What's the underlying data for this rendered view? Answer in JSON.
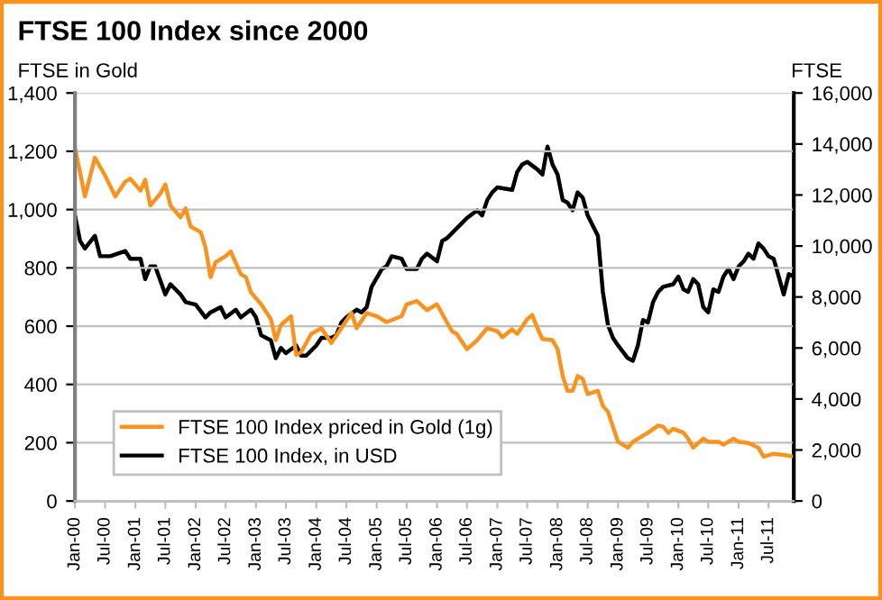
{
  "chart_data": {
    "type": "line",
    "title": "FTSE 100 Index since 2000",
    "ylabel": "FTSE in Gold",
    "y2label": "FTSE",
    "xlim": [
      "2000-01",
      "2011-12"
    ],
    "xticks": [
      {
        "value": "2000-01",
        "label": "Jan-00"
      },
      {
        "value": "2000-07",
        "label": "Jul-00"
      },
      {
        "value": "2001-01",
        "label": "Jan-01"
      },
      {
        "value": "2001-07",
        "label": "Jul-01"
      },
      {
        "value": "2002-01",
        "label": "Jan-02"
      },
      {
        "value": "2002-07",
        "label": "Jul-02"
      },
      {
        "value": "2003-01",
        "label": "Jan-03"
      },
      {
        "value": "2003-07",
        "label": "Jul-03"
      },
      {
        "value": "2004-01",
        "label": "Jan-04"
      },
      {
        "value": "2004-07",
        "label": "Jul-04"
      },
      {
        "value": "2005-01",
        "label": "Jan-05"
      },
      {
        "value": "2005-07",
        "label": "Jul-05"
      },
      {
        "value": "2006-01",
        "label": "Jan-06"
      },
      {
        "value": "2006-07",
        "label": "Jul-06"
      },
      {
        "value": "2007-01",
        "label": "Jan-07"
      },
      {
        "value": "2007-07",
        "label": "Jul-07"
      },
      {
        "value": "2008-01",
        "label": "Jan-08"
      },
      {
        "value": "2008-07",
        "label": "Jul-08"
      },
      {
        "value": "2009-01",
        "label": "Jan-09"
      },
      {
        "value": "2009-07",
        "label": "Jul-09"
      },
      {
        "value": "2010-01",
        "label": "Jan-10"
      },
      {
        "value": "2010-07",
        "label": "Jul-10"
      },
      {
        "value": "2011-01",
        "label": "Jan-11"
      },
      {
        "value": "2011-07",
        "label": "Jul-11"
      }
    ],
    "ylim": [
      0,
      1400
    ],
    "yticks": [
      0,
      200,
      400,
      600,
      800,
      {
        "value": 1000,
        "label": "1,000"
      },
      {
        "value": 1200,
        "label": "1,200"
      },
      {
        "value": 1400,
        "label": "1,400"
      }
    ],
    "y2lim": [
      0,
      16000
    ],
    "y2ticks": [
      0,
      {
        "value": 2000,
        "label": "2,000"
      },
      {
        "value": 4000,
        "label": "4,000"
      },
      {
        "value": 6000,
        "label": "6,000"
      },
      {
        "value": 8000,
        "label": "8,000"
      },
      {
        "value": 10000,
        "label": "10,000"
      },
      {
        "value": 12000,
        "label": "12,000"
      },
      {
        "value": 14000,
        "label": "14,000"
      },
      {
        "value": 16000,
        "label": "16,000"
      }
    ],
    "grid": "y",
    "legend": "bottom left",
    "marker": "none",
    "line_style": "solid",
    "series": [
      {
        "name": "FTSE 100 Index priced in Gold (1g)",
        "color": "#f7931e",
        "x": [
          "2000-01",
          "2000-02",
          "2000-03",
          "2000-05",
          "2000-07",
          "2000-09",
          "2000-11",
          "2000-12",
          "2001-02",
          "2001-03",
          "2001-04",
          "2001-06",
          "2001-07",
          "2001-08",
          "2001-10",
          "2001-11",
          "2001-12",
          "2002-02",
          "2002-03",
          "2002-04",
          "2002-05",
          "2002-07",
          "2002-08",
          "2002-10",
          "2002-11",
          "2002-12",
          "2003-02",
          "2003-04",
          "2003-05",
          "2003-06",
          "2003-08",
          "2003-09",
          "2003-10",
          "2003-12",
          "2004-02",
          "2004-04",
          "2004-06",
          "2004-08",
          "2004-09",
          "2004-11",
          "2005-01",
          "2005-03",
          "2005-06",
          "2005-07",
          "2005-09",
          "2005-11",
          "2006-01",
          "2006-03",
          "2006-04",
          "2006-05",
          "2006-07",
          "2006-09",
          "2006-11",
          "2007-01",
          "2007-02",
          "2007-04",
          "2007-05",
          "2007-07",
          "2007-08",
          "2007-09",
          "2007-10",
          "2007-12",
          "2008-01",
          "2008-02",
          "2008-03",
          "2008-04",
          "2008-05",
          "2008-06",
          "2008-07",
          "2008-09",
          "2008-10",
          "2008-11",
          "2008-12",
          "2009-01",
          "2009-03",
          "2009-04",
          "2009-06",
          "2009-07",
          "2009-09",
          "2009-10",
          "2009-11",
          "2009-12",
          "2010-02",
          "2010-03",
          "2010-04",
          "2010-06",
          "2010-07",
          "2010-09",
          "2010-10",
          "2010-12",
          "2011-01",
          "2011-03",
          "2011-05",
          "2011-06",
          "2011-08",
          "2011-10",
          "2011-12"
        ],
        "values": [
          1209,
          1127,
          1045,
          1178,
          1117,
          1045,
          1096,
          1106,
          1065,
          1102,
          1014,
          1055,
          1086,
          1014,
          973,
          1004,
          942,
          922,
          870,
          768,
          819,
          840,
          856,
          778,
          768,
          716,
          675,
          624,
          552,
          604,
          634,
          501,
          511,
          573,
          593,
          542,
          593,
          645,
          593,
          645,
          634,
          614,
          634,
          675,
          686,
          655,
          675,
          614,
          583,
          573,
          521,
          552,
          593,
          583,
          562,
          589,
          573,
          624,
          638,
          593,
          556,
          552,
          521,
          429,
          378,
          378,
          429,
          419,
          367,
          378,
          326,
          306,
          255,
          203,
          183,
          203,
          224,
          234,
          259,
          255,
          234,
          248,
          234,
          214,
          183,
          214,
          203,
          203,
          193,
          214,
          203,
          199,
          183,
          152,
          162,
          158,
          152
        ]
      },
      {
        "name": "FTSE 100 Index, in USD",
        "color": "#000000",
        "axis": "y2",
        "x": [
          "2000-01",
          "2000-02",
          "2000-03",
          "2000-05",
          "2000-06",
          "2000-08",
          "2000-11",
          "2000-12",
          "2001-02",
          "2001-03",
          "2001-04",
          "2001-05",
          "2001-07",
          "2001-08",
          "2001-10",
          "2001-11",
          "2002-01",
          "2002-03",
          "2002-04",
          "2002-06",
          "2002-07",
          "2002-09",
          "2002-10",
          "2002-12",
          "2003-01",
          "2003-02",
          "2003-04",
          "2003-05",
          "2003-06",
          "2003-07",
          "2003-09",
          "2003-10",
          "2003-11",
          "2004-01",
          "2004-02",
          "2004-04",
          "2004-05",
          "2004-06",
          "2004-07",
          "2004-09",
          "2004-10",
          "2004-11",
          "2004-12",
          "2005-02",
          "2005-03",
          "2005-04",
          "2005-06",
          "2005-07",
          "2005-09",
          "2005-10",
          "2005-11",
          "2006-01",
          "2006-02",
          "2006-03",
          "2006-06",
          "2006-07",
          "2006-09",
          "2006-10",
          "2006-11",
          "2006-12",
          "2007-01",
          "2007-04",
          "2007-05",
          "2007-06",
          "2007-07",
          "2007-09",
          "2007-10",
          "2007-11",
          "2007-12",
          "2008-01",
          "2008-02",
          "2008-03",
          "2008-04",
          "2008-05",
          "2008-06",
          "2008-07",
          "2008-08",
          "2008-09",
          "2008-10",
          "2008-11",
          "2008-12",
          "2009-01",
          "2009-03",
          "2009-04",
          "2009-05",
          "2009-06",
          "2009-07",
          "2009-08",
          "2009-09",
          "2009-10",
          "2009-12",
          "2010-01",
          "2010-02",
          "2010-03",
          "2010-04",
          "2010-05",
          "2010-06",
          "2010-07",
          "2010-08",
          "2010-09",
          "2010-10",
          "2010-11",
          "2010-12",
          "2011-01",
          "2011-02",
          "2011-03",
          "2011-04",
          "2011-05",
          "2011-06",
          "2011-07",
          "2011-08",
          "2011-09",
          "2011-10",
          "2011-11",
          "2011-12"
        ],
        "values": [
          11200,
          10200,
          9900,
          10400,
          9600,
          9600,
          9800,
          9500,
          9500,
          8700,
          9200,
          9200,
          8100,
          8500,
          8100,
          7800,
          7700,
          7200,
          7400,
          7600,
          7200,
          7500,
          7200,
          7500,
          7200,
          6500,
          6300,
          5600,
          6000,
          5800,
          6100,
          5700,
          5700,
          6100,
          6400,
          6400,
          6500,
          7000,
          7200,
          7500,
          7400,
          7600,
          8400,
          9100,
          9200,
          9600,
          9500,
          9100,
          9100,
          9500,
          9700,
          9400,
          10200,
          10300,
          10900,
          11100,
          11400,
          11200,
          11800,
          12100,
          12300,
          12200,
          12900,
          13200,
          13300,
          13000,
          12800,
          13900,
          13200,
          12800,
          11800,
          11700,
          11400,
          12100,
          11900,
          11200,
          10800,
          10400,
          8200,
          6900,
          6400,
          6100,
          5600,
          5500,
          6100,
          7100,
          7000,
          7800,
          8200,
          8400,
          8500,
          8800,
          8300,
          8200,
          8700,
          8500,
          7600,
          7400,
          8300,
          8200,
          8800,
          9100,
          8700,
          9200,
          9400,
          9700,
          9500,
          10100,
          9900,
          9600,
          9500,
          8800,
          8100,
          8900,
          8800
        ]
      }
    ]
  }
}
